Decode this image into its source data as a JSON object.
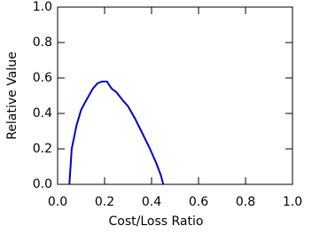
{
  "chart_data": {
    "type": "line",
    "xlabel": "Cost/Loss Ratio",
    "ylabel": "Relative Value",
    "xlim": [
      0,
      1
    ],
    "ylim": [
      0,
      1
    ],
    "xticks": [
      {
        "value": 0,
        "label": "0.0"
      },
      0.2,
      0.4,
      0.6,
      0.8,
      {
        "value": 1,
        "label": "1.0"
      }
    ],
    "yticks": [
      {
        "value": 0,
        "label": "0.0"
      },
      0.2,
      0.4,
      0.6,
      0.8,
      {
        "value": 1,
        "label": "1.0"
      }
    ],
    "series": [
      {
        "color": "#0000cc",
        "x": [
          0.05,
          0.06,
          0.08,
          0.1,
          0.12,
          0.15,
          0.17,
          0.19,
          0.21,
          0.23,
          0.25,
          0.28,
          0.3,
          0.33,
          0.36,
          0.39,
          0.42,
          0.44,
          0.45
        ],
        "values": [
          0,
          0.2,
          0.33,
          0.42,
          0.47,
          0.54,
          0.57,
          0.58,
          0.58,
          0.54,
          0.52,
          0.47,
          0.44,
          0.37,
          0.29,
          0.21,
          0.12,
          0.05,
          0
        ]
      }
    ]
  }
}
